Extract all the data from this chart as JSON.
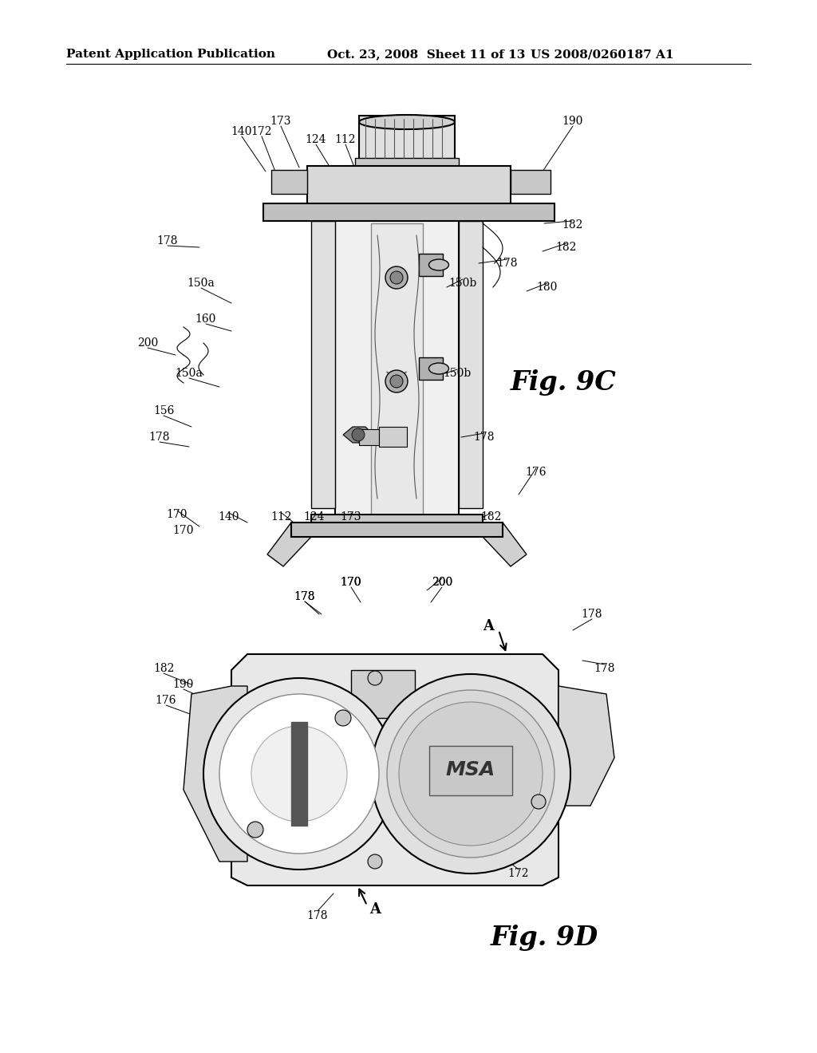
{
  "background_color": "#ffffff",
  "header_left": "Patent Application Publication",
  "header_middle": "Oct. 23, 2008  Sheet 11 of 13",
  "header_right": "US 2008/0260187 A1",
  "fig9c_label": "Fig. 9C",
  "fig9d_label": "Fig. 9D",
  "line_color": "#000000",
  "gray_light": "#e8e8e8",
  "gray_mid": "#c0c0c0",
  "gray_dark": "#888888",
  "white": "#ffffff"
}
